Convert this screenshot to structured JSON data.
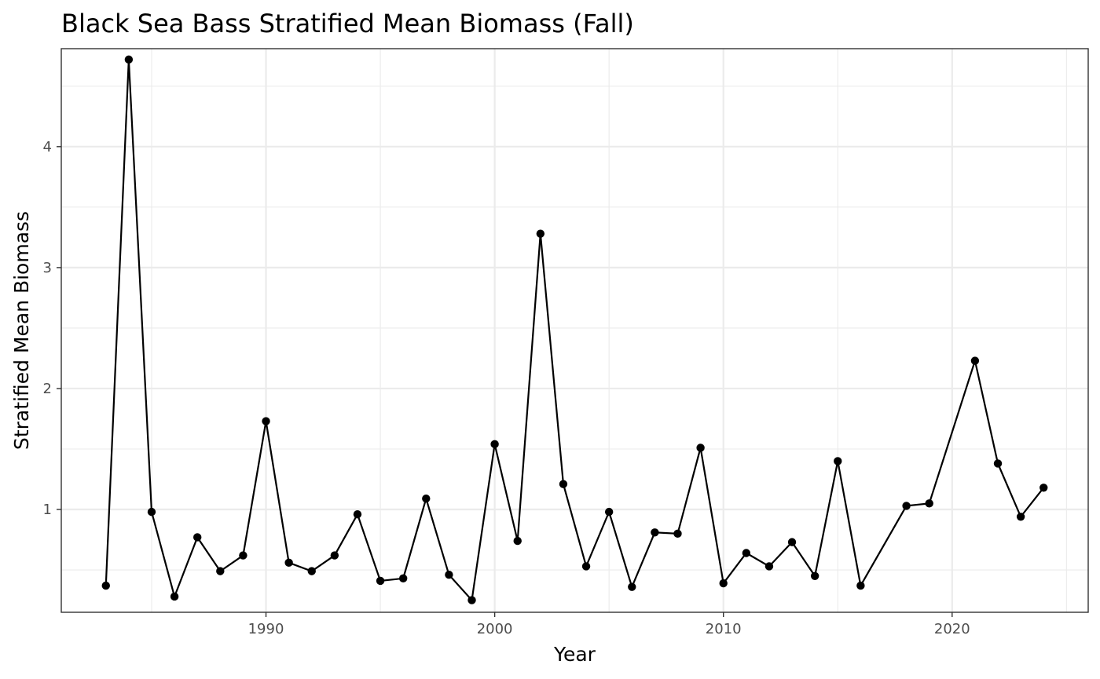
{
  "chart_data": {
    "type": "line",
    "title": "Black Sea Bass Stratified Mean Biomass (Fall)",
    "xlabel": "Year",
    "ylabel": "Stratified Mean Biomass",
    "xlim": [
      1981.05,
      2025.95
    ],
    "ylim": [
      0.15,
      4.81
    ],
    "x_major_ticks": [
      1990,
      2000,
      2010,
      2020
    ],
    "x_minor_ticks": [
      1985,
      1995,
      2005,
      2015,
      2025
    ],
    "y_major_ticks": [
      1,
      2,
      3,
      4
    ],
    "y_minor_ticks": [
      0.5,
      1.5,
      2.5,
      3.5,
      4.5
    ],
    "grid": true,
    "legend": "none",
    "colors": {
      "line": "#000000",
      "points": "#000000",
      "grid": "#ebebeb",
      "border": "#333333"
    },
    "x": [
      1983,
      1984,
      1985,
      1986,
      1987,
      1988,
      1989,
      1990,
      1991,
      1992,
      1993,
      1994,
      1995,
      1996,
      1997,
      1998,
      1999,
      2000,
      2001,
      2002,
      2003,
      2004,
      2005,
      2006,
      2007,
      2008,
      2009,
      2010,
      2011,
      2012,
      2013,
      2014,
      2015,
      2016,
      2018,
      2019,
      2021,
      2022,
      2023,
      2024
    ],
    "y": [
      0.37,
      4.72,
      0.98,
      0.28,
      0.77,
      0.49,
      0.62,
      1.73,
      0.56,
      0.49,
      0.62,
      0.96,
      0.41,
      0.43,
      1.09,
      0.46,
      0.25,
      1.54,
      0.74,
      3.28,
      1.21,
      0.53,
      0.98,
      0.36,
      0.81,
      0.8,
      1.51,
      0.39,
      0.64,
      0.53,
      0.73,
      0.45,
      1.4,
      0.37,
      1.03,
      1.05,
      2.23,
      1.38,
      0.94,
      1.18
    ]
  }
}
